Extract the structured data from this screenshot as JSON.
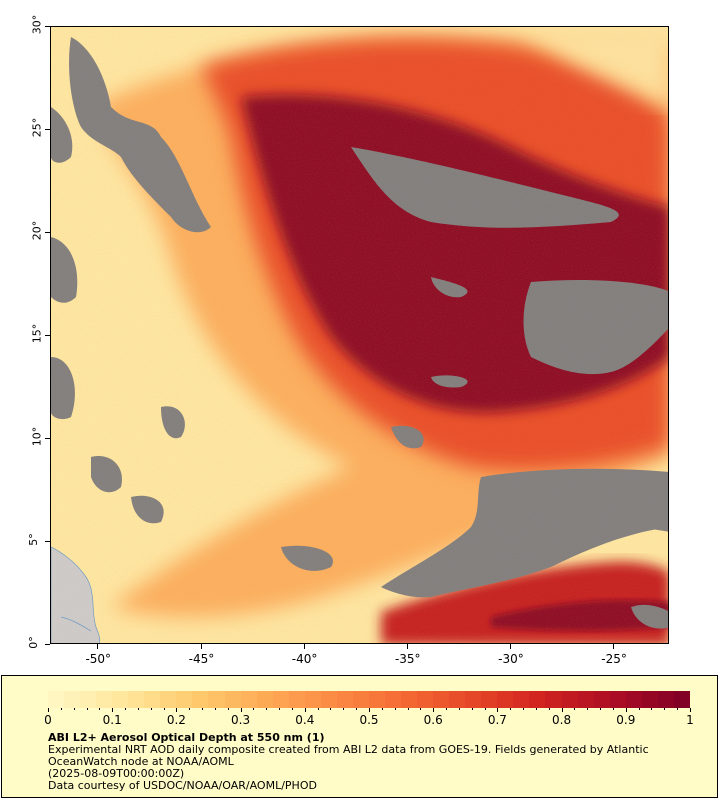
{
  "map": {
    "latitude_ticks": [
      "0°",
      "5°",
      "10°",
      "15°",
      "20°",
      "25°",
      "30°"
    ],
    "longitude_ticks": [
      "-50°",
      "-45°",
      "-40°",
      "-35°",
      "-30°",
      "-25°"
    ],
    "extent": {
      "lon_min": -52.3,
      "lon_max": -22.3,
      "lat_min": 0,
      "lat_max": 30
    },
    "no_data_color": "#808080",
    "land_color": "#cccccc"
  },
  "legend": {
    "colorbar_ticks": [
      "0",
      "0.1",
      "0.2",
      "0.3",
      "0.4",
      "0.5",
      "0.6",
      "0.7",
      "0.8",
      "0.9",
      "1"
    ],
    "colorbar_range": [
      0,
      1
    ],
    "colorbar_colors": [
      "#fff6c2",
      "#ffe69a",
      "#fecb6d",
      "#fdaa55",
      "#fb8a44",
      "#f46a34",
      "#e64628",
      "#d0221f",
      "#ac0d24",
      "#820026"
    ],
    "title": "ABI L2+ Aerosol Optical Depth at 550 nm (1)",
    "description_line1": "Experimental NRT AOD daily composite created from ABI L2 data from GOES-19. Fields generated by Atlantic",
    "description_line2": "OceanWatch node at NOAA/AOML",
    "date_line": "(2025-08-09T00:00:00Z)",
    "credit_line": "Data courtesy of USDOC/NOAA/OAR/AOML/PHOD"
  }
}
